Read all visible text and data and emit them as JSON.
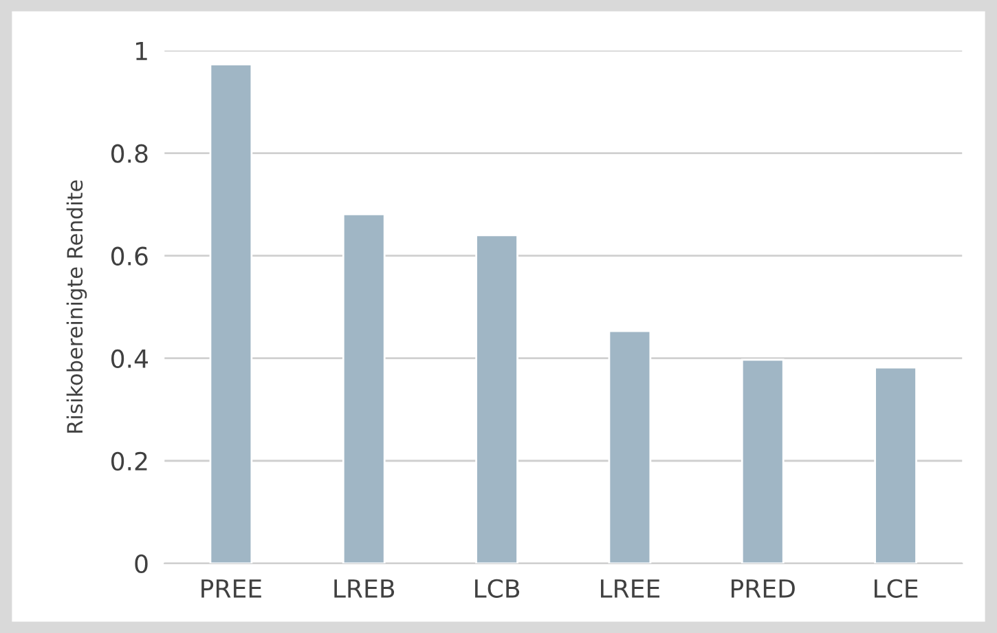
{
  "chart_data": {
    "type": "bar",
    "ylabel": "Risikobereinigte Rendite",
    "categories": [
      "PREE",
      "LREB",
      "LCB",
      "LREE",
      "PRED",
      "LCE"
    ],
    "values": [
      0.973,
      0.681,
      0.64,
      0.453,
      0.397,
      0.382
    ],
    "color": "#a0b6c5",
    "ylim": [
      0,
      1
    ],
    "yticks": [
      0,
      0.2,
      0.4,
      0.6,
      0.8,
      1
    ],
    "grid": "y",
    "legend": false
  }
}
